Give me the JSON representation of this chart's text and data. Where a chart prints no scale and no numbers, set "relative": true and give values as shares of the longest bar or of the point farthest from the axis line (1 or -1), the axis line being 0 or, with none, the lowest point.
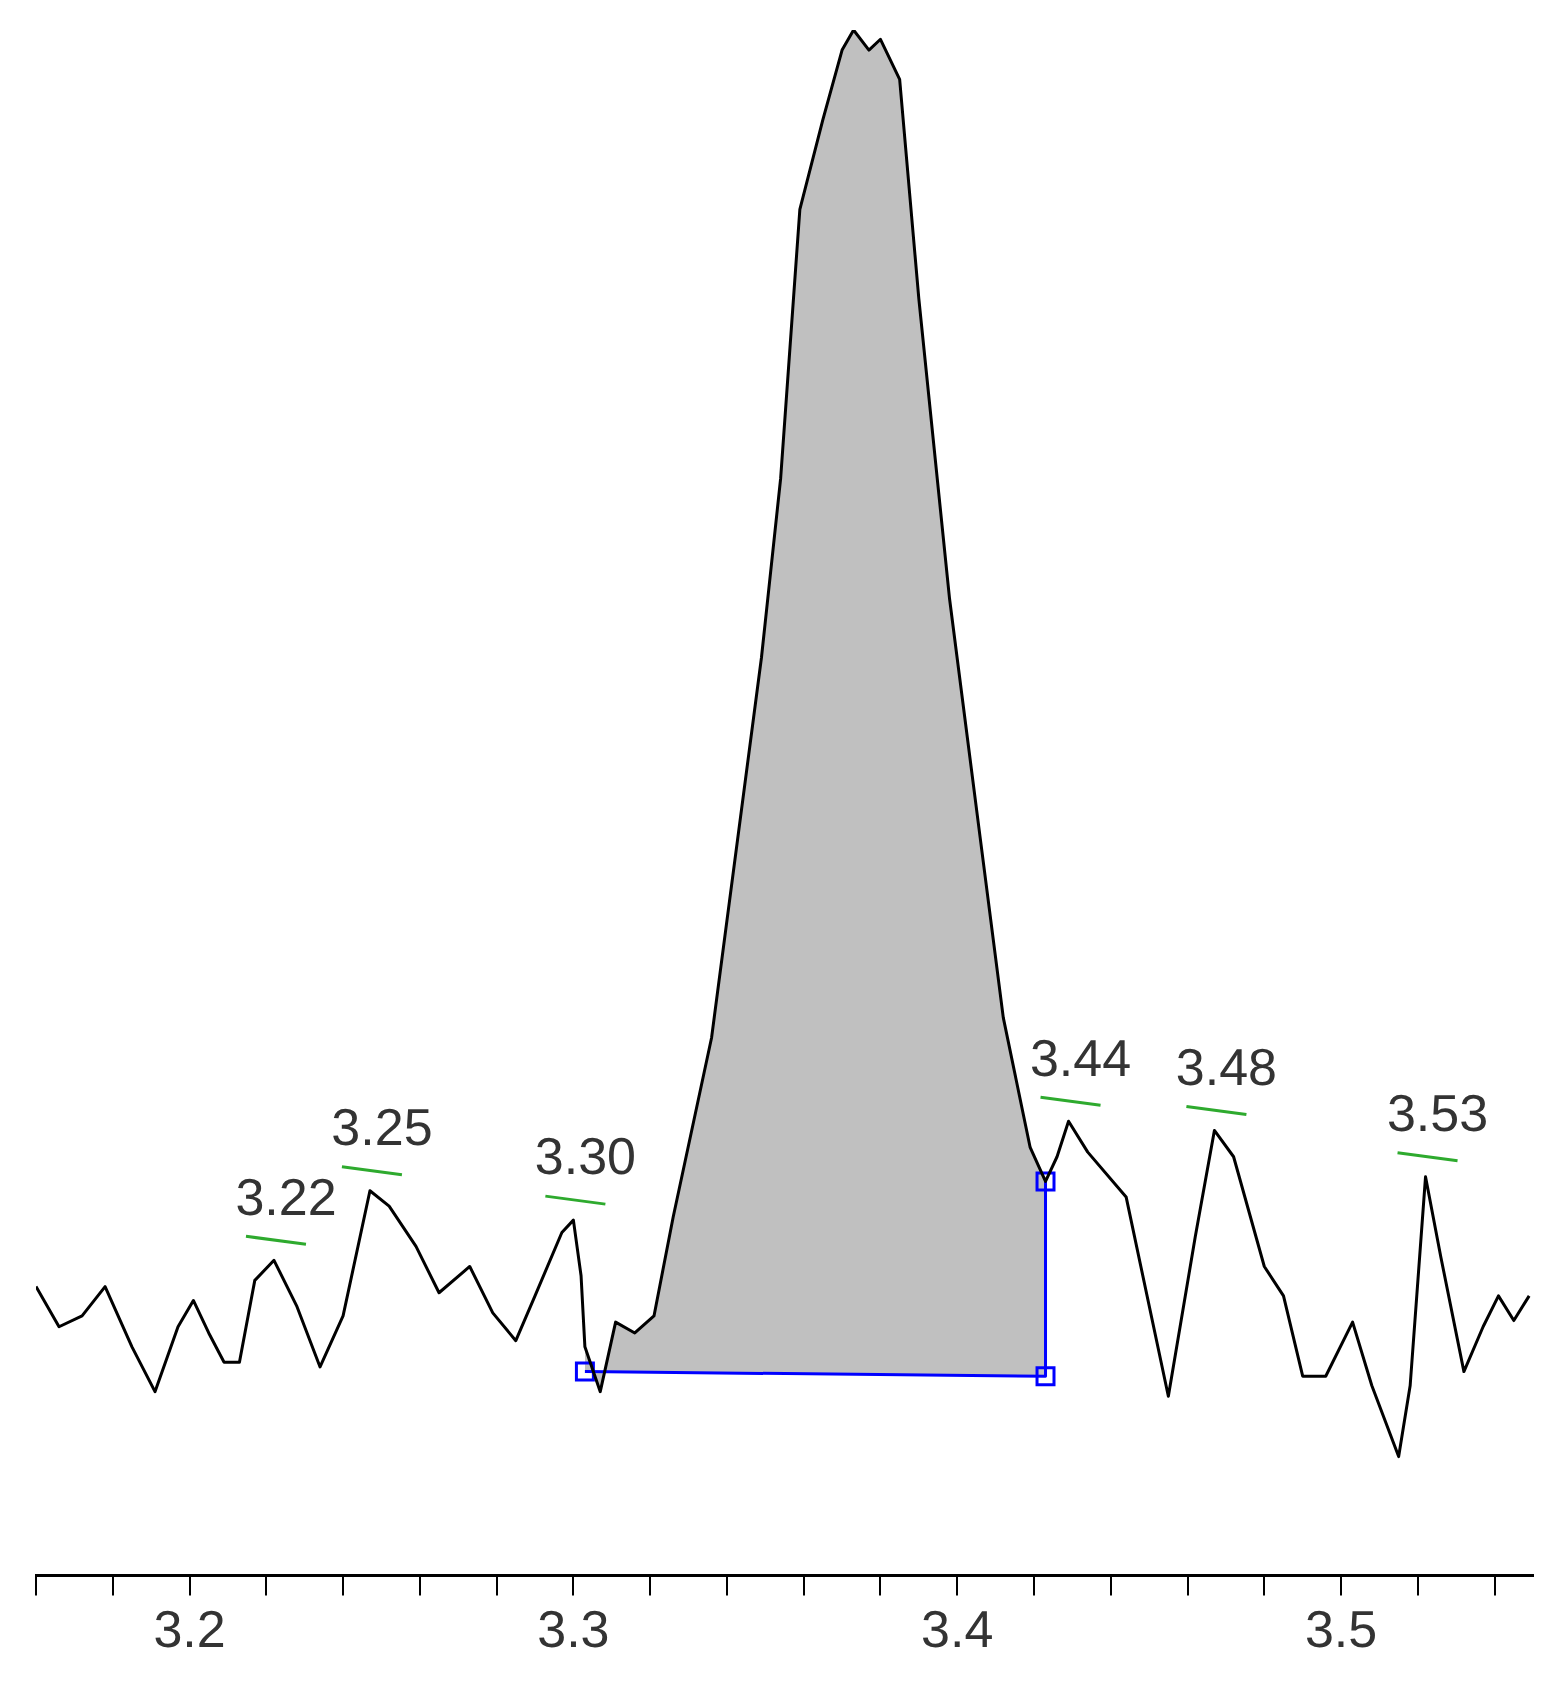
{
  "chart_data": {
    "type": "line",
    "relative": true,
    "xlim": [
      3.16,
      3.55
    ],
    "xticks": [
      {
        "value": 3.16,
        "label": null
      },
      {
        "value": 3.18,
        "label": null
      },
      {
        "value": 3.2,
        "label": "3.2"
      },
      {
        "value": 3.22,
        "label": null
      },
      {
        "value": 3.24,
        "label": null
      },
      {
        "value": 3.26,
        "label": null
      },
      {
        "value": 3.28,
        "label": null
      },
      {
        "value": 3.3,
        "label": "3.3"
      },
      {
        "value": 3.32,
        "label": null
      },
      {
        "value": 3.34,
        "label": null
      },
      {
        "value": 3.36,
        "label": null
      },
      {
        "value": 3.38,
        "label": null
      },
      {
        "value": 3.4,
        "label": "3.4"
      },
      {
        "value": 3.42,
        "label": null
      },
      {
        "value": 3.44,
        "label": null
      },
      {
        "value": 3.46,
        "label": null
      },
      {
        "value": 3.48,
        "label": null
      },
      {
        "value": 3.5,
        "label": "3.5"
      },
      {
        "value": 3.52,
        "label": null
      },
      {
        "value": 3.54,
        "label": null
      }
    ],
    "tick_labels": "x",
    "grid": false,
    "legend": false,
    "series": [
      {
        "color": "#000000",
        "x": [
          3.16,
          3.166,
          3.172,
          3.178,
          3.185,
          3.191,
          3.197,
          3.201,
          3.205,
          3.209,
          3.213,
          3.217,
          3.222,
          3.228,
          3.234,
          3.24,
          3.247,
          3.252,
          3.259,
          3.265,
          3.273,
          3.279,
          3.285,
          3.29,
          3.297,
          3.3,
          3.302,
          3.303,
          3.307,
          3.311,
          3.316,
          3.321,
          3.326,
          3.336,
          3.349,
          3.354,
          3.359,
          3.365,
          3.37,
          3.373,
          3.377,
          3.38,
          3.385,
          3.39,
          3.398,
          3.406,
          3.412,
          3.419,
          3.423,
          3.426,
          3.429,
          3.434,
          3.444,
          3.455,
          3.462,
          3.467,
          3.472,
          3.48,
          3.485,
          3.49,
          3.496,
          3.503,
          3.508,
          3.515,
          3.518,
          3.522,
          3.526,
          3.532,
          3.537,
          3.541,
          3.545,
          3.549
        ],
        "values": [
          0.187,
          0.161,
          0.168,
          0.187,
          0.148,
          0.119,
          0.161,
          0.178,
          0.157,
          0.138,
          0.138,
          0.191,
          0.204,
          0.174,
          0.135,
          0.168,
          0.249,
          0.239,
          0.213,
          0.183,
          0.2,
          0.17,
          0.152,
          0.181,
          0.222,
          0.23,
          0.194,
          0.148,
          0.119,
          0.164,
          0.157,
          0.168,
          0.232,
          0.348,
          0.594,
          0.71,
          0.884,
          0.942,
          0.987,
          1,
          0.987,
          0.994,
          0.968,
          0.826,
          0.632,
          0.477,
          0.361,
          0.277,
          0.255,
          0.271,
          0.294,
          0.274,
          0.245,
          0.116,
          0.219,
          0.288,
          0.271,
          0.2,
          0.181,
          0.129,
          0.129,
          0.164,
          0.123,
          0.077,
          0.123,
          0.258,
          0.206,
          0.132,
          0.161,
          0.181,
          0.165,
          0.181
        ]
      },
      {
        "type": "area",
        "color": "#c0c0c0",
        "x": [
          3.303,
          3.307,
          3.311,
          3.316,
          3.321,
          3.326,
          3.336,
          3.349,
          3.354,
          3.359,
          3.365,
          3.37,
          3.373,
          3.377,
          3.38,
          3.385,
          3.39,
          3.398,
          3.406,
          3.412,
          3.419,
          3.423
        ],
        "values": [
          0.148,
          0.119,
          0.164,
          0.157,
          0.168,
          0.232,
          0.348,
          0.594,
          0.71,
          0.884,
          0.942,
          0.987,
          1,
          0.987,
          0.994,
          0.968,
          0.826,
          0.632,
          0.477,
          0.361,
          0.277,
          0.255
        ]
      },
      {
        "type": "line",
        "color": "#0000ff",
        "marker": "square",
        "x": [
          3.303,
          3.423,
          3.423
        ],
        "values": [
          0.132,
          0.129,
          0.255
        ]
      }
    ],
    "annotations": [
      {
        "text": "3.22",
        "x": 3.222,
        "y": 0.204
      },
      {
        "text": "3.25",
        "x": 3.247,
        "y": 0.249
      },
      {
        "text": "3.30",
        "x": 3.3,
        "y": 0.23
      },
      {
        "text": "3.44",
        "x": 3.429,
        "y": 0.294
      },
      {
        "text": "3.48",
        "x": 3.467,
        "y": 0.288
      },
      {
        "text": "3.53",
        "x": 3.522,
        "y": 0.258
      }
    ]
  }
}
